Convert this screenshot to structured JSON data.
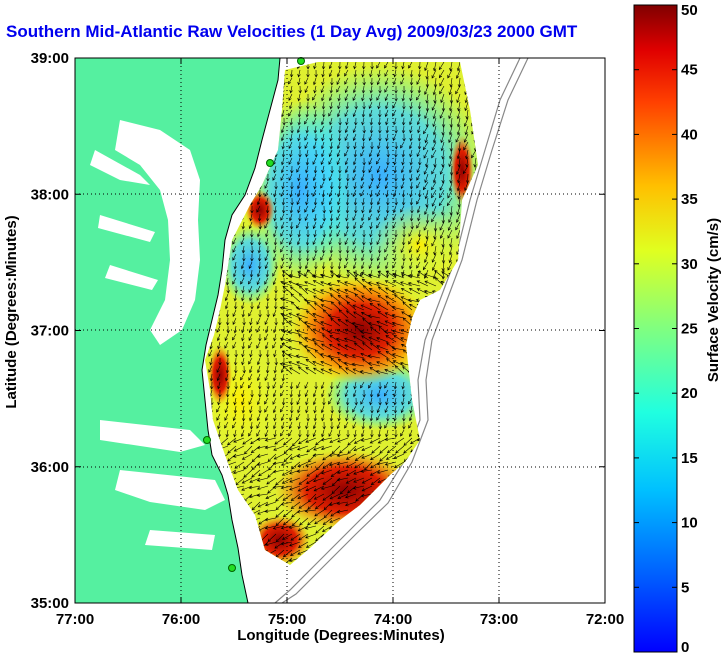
{
  "title": "Southern Mid-Atlantic Raw Velocities (1 Day Avg) 2009/03/23 2000 GMT",
  "map": {
    "xlabel": "Longitude (Degrees:Minutes)",
    "ylabel": "Latitude (Degrees:Minutes)",
    "x_ticks": [
      {
        "lon": -77,
        "label": "77:00"
      },
      {
        "lon": -76,
        "label": "76:00"
      },
      {
        "lon": -75,
        "label": "75:00"
      },
      {
        "lon": -74,
        "label": "74:00"
      },
      {
        "lon": -73,
        "label": "73:00"
      },
      {
        "lon": -72,
        "label": "72:00"
      }
    ],
    "y_ticks": [
      {
        "lat": 39,
        "label": "39:00"
      },
      {
        "lat": 38,
        "label": "38:00"
      },
      {
        "lat": 37,
        "label": "37:00"
      },
      {
        "lat": 36,
        "label": "36:00"
      },
      {
        "lat": 35,
        "label": "35:00"
      }
    ],
    "lon_range": [
      -77,
      -72
    ],
    "lat_range": [
      35,
      39
    ],
    "grid": "dotted",
    "land_color": "#55f0a0",
    "water_color": "#ffffff",
    "station_color": "#22dd22"
  },
  "colorbar": {
    "label": "Surface Velocity (cm/s)",
    "units": "cm/s",
    "range": [
      0,
      50
    ],
    "ticks": [
      "0",
      "5",
      "10",
      "15",
      "20",
      "25",
      "30",
      "35",
      "40",
      "45",
      "50"
    ],
    "colormap": "jet"
  }
}
